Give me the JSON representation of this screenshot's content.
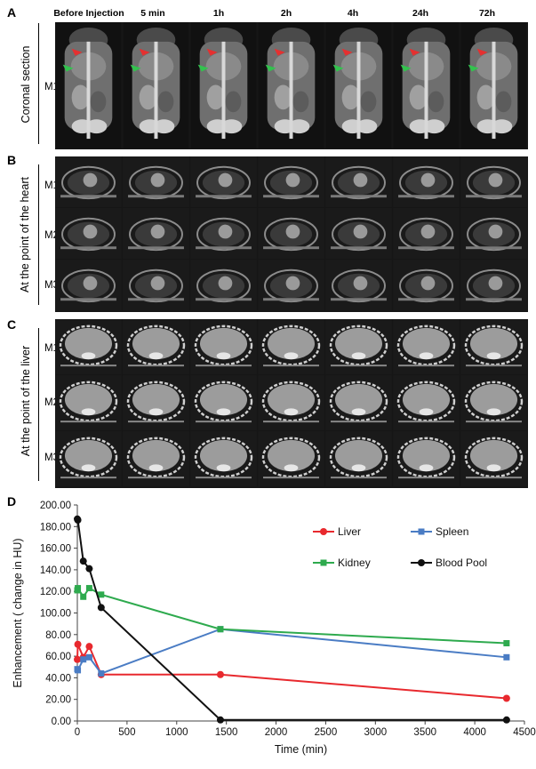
{
  "panels": {
    "A": {
      "letter": "A",
      "section_label": "Coronal section",
      "rows": [
        "M1"
      ]
    },
    "B": {
      "letter": "B",
      "section_label": "At the point of the heart",
      "rows": [
        "M1",
        "M2",
        "M3"
      ]
    },
    "C": {
      "letter": "C",
      "section_label": "At the point of the liver",
      "rows": [
        "M1",
        "M2",
        "M3"
      ]
    },
    "D": {
      "letter": "D"
    }
  },
  "timepoints": [
    "Before Injection",
    "5 min",
    "1h",
    "2h",
    "4h",
    "24h",
    "72h"
  ],
  "chart_data": {
    "type": "line",
    "xlabel": "Time (min)",
    "ylabel": "Enhancement ( change in HU)",
    "xlim": [
      0,
      4500
    ],
    "ylim": [
      0,
      200
    ],
    "x_ticks": [
      "0",
      "500",
      "1000",
      "1500",
      "2000",
      "2500",
      "3000",
      "3500",
      "4000",
      "4500"
    ],
    "y_ticks": [
      "0.00",
      "20.00",
      "40.00",
      "60.00",
      "80.00",
      "100.00",
      "120.00",
      "140.00",
      "160.00",
      "180.00",
      "200.00"
    ],
    "legend_position": "top-right",
    "x": [
      0,
      5,
      60,
      120,
      240,
      1440,
      4320
    ],
    "series": [
      {
        "name": "Liver",
        "color": "#e8292e",
        "marker": "circle",
        "values": [
          57,
          71,
          59,
          69,
          43,
          43,
          21
        ]
      },
      {
        "name": "Spleen",
        "color": "#4a7cc4",
        "marker": "square",
        "values": [
          48,
          47,
          57,
          59,
          44,
          85,
          59
        ]
      },
      {
        "name": "Kidney",
        "color": "#2eaa4e",
        "marker": "square",
        "values": [
          121,
          123,
          115,
          123,
          117,
          85,
          72
        ]
      },
      {
        "name": "Blood Pool",
        "color": "#111111",
        "marker": "circle",
        "values": [
          187,
          186,
          148,
          141,
          105,
          1,
          1
        ]
      }
    ],
    "grid": false
  }
}
